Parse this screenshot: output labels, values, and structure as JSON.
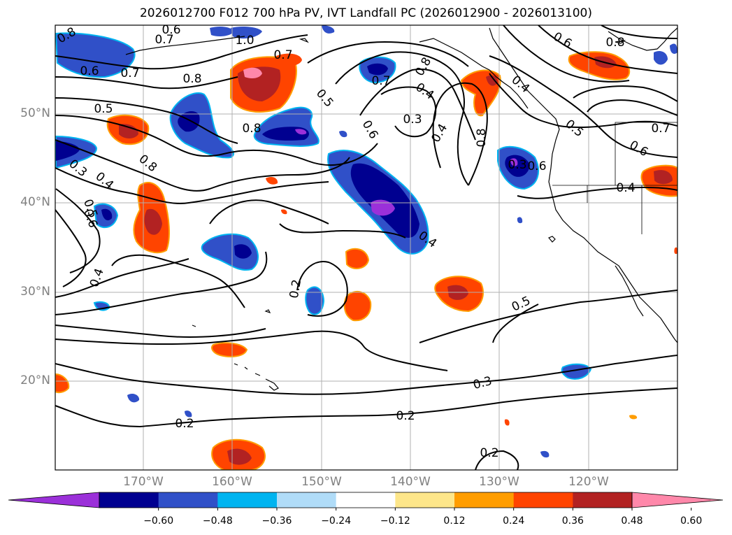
{
  "title": "2026012700 F012 700 hPa PV, IVT Landfall PC (2026012900 - 2026013100)",
  "colors": {
    "land_line": "#000000",
    "contour": "#000000",
    "grid": "#b0b0b0",
    "purple": "#9b30d9",
    "navy": "#000090",
    "blue": "#3050c8",
    "cyan": "#00b4f0",
    "lightblue": "#b0dcf8",
    "white": "#ffffff",
    "yellow": "#fde68a",
    "orange": "#ff9d00",
    "redorange": "#ff4400",
    "darkred": "#b22222",
    "pink": "#ff88aa"
  },
  "lat_labels": [
    {
      "text": "50°N"
    },
    {
      "text": "40°N"
    },
    {
      "text": "30°N"
    },
    {
      "text": "20°N"
    }
  ],
  "lon_labels": [
    {
      "text": "170°W"
    },
    {
      "text": "160°W"
    },
    {
      "text": "150°W"
    },
    {
      "text": "140°W"
    },
    {
      "text": "130°W"
    },
    {
      "text": "120°W"
    }
  ],
  "colorbar": {
    "labels": [
      "−0.60",
      "−0.48",
      "−0.36",
      "−0.24",
      "−0.12",
      "0.12",
      "0.24",
      "0.36",
      "0.48",
      "0.60"
    ],
    "bins": [
      "purple",
      "navy",
      "blue",
      "cyan",
      "lightblue",
      "white",
      "yellow",
      "orange",
      "redorange",
      "darkred",
      "pink"
    ]
  },
  "contour_labels": [
    "0.8",
    "0.7",
    "0.6",
    "0.7",
    "0.8",
    "0.6",
    "0.5",
    "0.7",
    "0.8",
    "0.5",
    "0.6",
    "0.3",
    "0.4",
    "0.8",
    "0.8",
    "0.7",
    "0.4",
    "0.3",
    "0.4",
    "0.5",
    "0.6",
    "0.8",
    "0.7",
    "0.6",
    "0.4",
    "0.8",
    "0.6",
    "0.3",
    "0.5",
    "0.6",
    "0.4",
    "0.4",
    "0.2",
    "0.4",
    "0.5",
    "0.3",
    "0.2",
    "0.2",
    "0.2",
    "1.0"
  ]
}
